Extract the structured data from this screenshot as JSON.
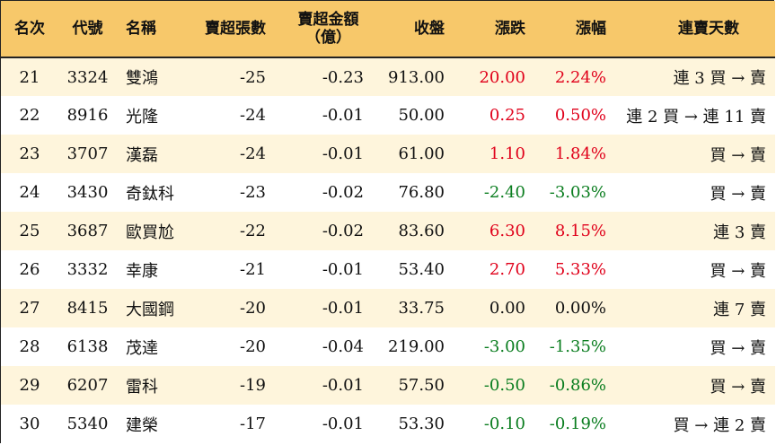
{
  "headers": {
    "rank": "名次",
    "code": "代號",
    "name": "名稱",
    "sell_lots": "賣超張數",
    "sell_amount_line1": "賣超金額",
    "sell_amount_line2": "（億）",
    "close": "收盤",
    "change": "漲跌",
    "change_pct": "漲幅",
    "streak": "連賣天數"
  },
  "colors": {
    "header_bg": "#f7c86a",
    "stripe_bg": "#fef5dc",
    "up": "#e0001a",
    "down": "#0a7d1f"
  },
  "rows": [
    {
      "rank": "21",
      "code": "3324",
      "name": "雙鴻",
      "sell_lots": "-25",
      "sell_amount": "-0.23",
      "close": "913.00",
      "change": "20.00",
      "change_pct": "2.24%",
      "dir": "up",
      "streak": "連 3 買 → 賣"
    },
    {
      "rank": "22",
      "code": "8916",
      "name": "光隆",
      "sell_lots": "-24",
      "sell_amount": "-0.01",
      "close": "50.00",
      "change": "0.25",
      "change_pct": "0.50%",
      "dir": "up",
      "streak": "連 2 買 → 連 11 賣"
    },
    {
      "rank": "23",
      "code": "3707",
      "name": "漢磊",
      "sell_lots": "-24",
      "sell_amount": "-0.01",
      "close": "61.00",
      "change": "1.10",
      "change_pct": "1.84%",
      "dir": "up",
      "streak": "買 → 賣"
    },
    {
      "rank": "24",
      "code": "3430",
      "name": "奇鈦科",
      "sell_lots": "-23",
      "sell_amount": "-0.02",
      "close": "76.80",
      "change": "-2.40",
      "change_pct": "-3.03%",
      "dir": "down",
      "streak": "買 → 賣"
    },
    {
      "rank": "25",
      "code": "3687",
      "name": "歐買尬",
      "sell_lots": "-22",
      "sell_amount": "-0.02",
      "close": "83.60",
      "change": "6.30",
      "change_pct": "8.15%",
      "dir": "up",
      "streak": "連 3 賣"
    },
    {
      "rank": "26",
      "code": "3332",
      "name": "幸康",
      "sell_lots": "-21",
      "sell_amount": "-0.01",
      "close": "53.40",
      "change": "2.70",
      "change_pct": "5.33%",
      "dir": "up",
      "streak": "買 → 賣"
    },
    {
      "rank": "27",
      "code": "8415",
      "name": "大國鋼",
      "sell_lots": "-20",
      "sell_amount": "-0.01",
      "close": "33.75",
      "change": "0.00",
      "change_pct": "0.00%",
      "dir": "flat",
      "streak": "連 7 賣"
    },
    {
      "rank": "28",
      "code": "6138",
      "name": "茂達",
      "sell_lots": "-20",
      "sell_amount": "-0.04",
      "close": "219.00",
      "change": "-3.00",
      "change_pct": "-1.35%",
      "dir": "down",
      "streak": "買 → 賣"
    },
    {
      "rank": "29",
      "code": "6207",
      "name": "雷科",
      "sell_lots": "-19",
      "sell_amount": "-0.01",
      "close": "57.50",
      "change": "-0.50",
      "change_pct": "-0.86%",
      "dir": "down",
      "streak": "買 → 賣"
    },
    {
      "rank": "30",
      "code": "5340",
      "name": "建榮",
      "sell_lots": "-17",
      "sell_amount": "-0.01",
      "close": "53.30",
      "change": "-0.10",
      "change_pct": "-0.19%",
      "dir": "down",
      "streak": "買 → 連 2 賣"
    }
  ]
}
